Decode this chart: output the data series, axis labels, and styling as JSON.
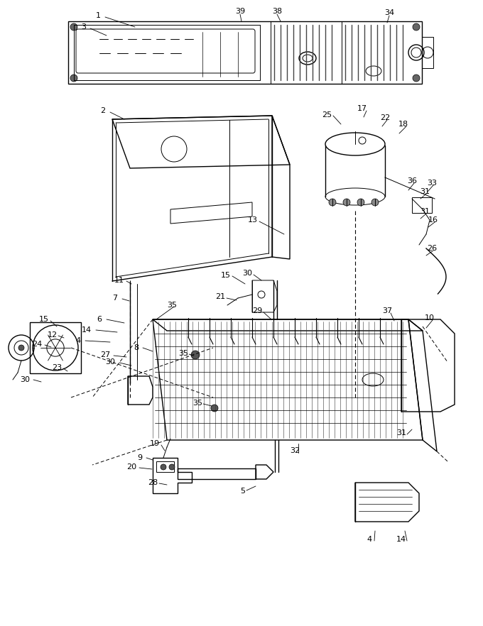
{
  "bg_color": "#ffffff",
  "lc": "#000000",
  "fig_w": 6.8,
  "fig_h": 8.82,
  "dpi": 100
}
